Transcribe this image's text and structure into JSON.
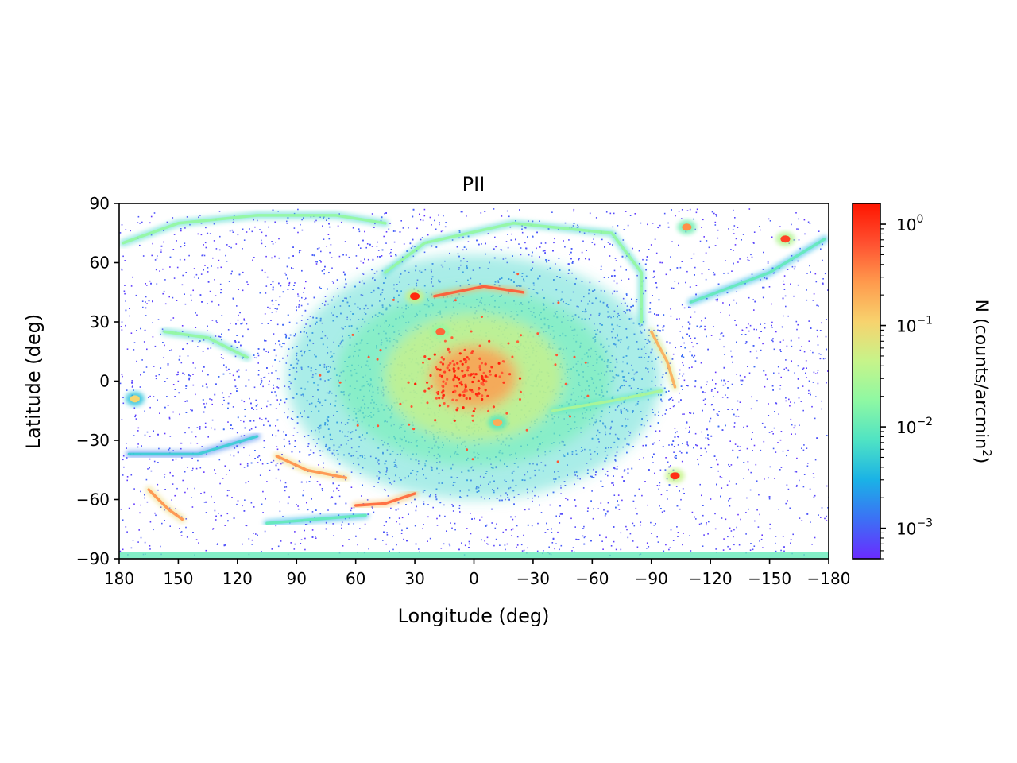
{
  "chart_data": {
    "type": "heatmap",
    "title": "PII",
    "xlabel": "Longitude (deg)",
    "ylabel": "Latitude (deg)",
    "xlim": [
      180,
      -180
    ],
    "ylim": [
      -90,
      90
    ],
    "x_ticks": [
      180,
      150,
      120,
      90,
      60,
      30,
      0,
      -30,
      -60,
      -90,
      -120,
      -150,
      -180
    ],
    "x_tick_labels": [
      "180",
      "150",
      "120",
      "90",
      "60",
      "30",
      "0",
      "−30",
      "−60",
      "−90",
      "−120",
      "−150",
      "−180"
    ],
    "y_ticks": [
      90,
      60,
      30,
      0,
      -30,
      -60,
      -90
    ],
    "y_tick_labels": [
      "90",
      "60",
      "30",
      "0",
      "−30",
      "−60",
      "−90"
    ],
    "colorbar": {
      "label_main": "N (counts/arcmin",
      "label_sup": "2",
      "label_close": ")",
      "scale": "log",
      "range": [
        0.0005,
        1.6
      ],
      "ticks": [
        {
          "value": 1,
          "base": "10",
          "exp": "0"
        },
        {
          "value": 0.1,
          "base": "10",
          "exp": "−1"
        },
        {
          "value": 0.01,
          "base": "10",
          "exp": "−2"
        },
        {
          "value": 0.001,
          "base": "10",
          "exp": "−3"
        }
      ],
      "colormap": "rainbow",
      "colormap_stops": [
        "#6a2bff",
        "#3c70f5",
        "#1ab2e6",
        "#4fe3c4",
        "#8ef8a3",
        "#c6f48a",
        "#f7d36e",
        "#ff9a4d",
        "#ff5030",
        "#ff1500"
      ]
    },
    "features": {
      "central_core": {
        "lon": 5,
        "lat": 0,
        "density": 1.0
      },
      "halo": {
        "lon": 0,
        "lat": 2,
        "density": 0.015
      },
      "dense_clumps": [
        {
          "lon": 30,
          "lat": 43,
          "density": 1.2
        },
        {
          "lon": 17,
          "lat": 25,
          "density": 0.5
        },
        {
          "lon": -102,
          "lat": -48,
          "density": 1.1
        },
        {
          "lon": -158,
          "lat": 72,
          "density": 0.8
        },
        {
          "lon": -108,
          "lat": 78,
          "density": 0.3
        },
        {
          "lon": -12,
          "lat": -21,
          "density": 0.2
        },
        {
          "lon": 172,
          "lat": -9,
          "density": 0.1
        }
      ],
      "streams": [
        {
          "points": [
            [
              178,
              70
            ],
            [
              150,
              80
            ],
            [
              110,
              84
            ],
            [
              70,
              84
            ],
            [
              45,
              80
            ]
          ],
          "density": 0.02
        },
        {
          "points": [
            [
              157,
              25
            ],
            [
              135,
              22
            ],
            [
              115,
              12
            ]
          ],
          "density": 0.02
        },
        {
          "points": [
            [
              175,
              -37
            ],
            [
              140,
              -37
            ],
            [
              110,
              -28
            ]
          ],
          "density": 0.005
        },
        {
          "points": [
            [
              165,
              -55
            ],
            [
              155,
              -65
            ],
            [
              148,
              -70
            ]
          ],
          "density": 0.3
        },
        {
          "points": [
            [
              100,
              -38
            ],
            [
              85,
              -45
            ],
            [
              65,
              -49
            ]
          ],
          "density": 0.3
        },
        {
          "points": [
            [
              60,
              -63
            ],
            [
              45,
              -62
            ],
            [
              30,
              -57
            ]
          ],
          "density": 0.5
        },
        {
          "points": [
            [
              105,
              -72
            ],
            [
              80,
              -70
            ],
            [
              55,
              -68
            ]
          ],
          "density": 0.01
        },
        {
          "points": [
            [
              20,
              43
            ],
            [
              -5,
              48
            ],
            [
              -25,
              45
            ]
          ],
          "density": 0.6
        },
        {
          "points": [
            [
              45,
              55
            ],
            [
              25,
              70
            ],
            [
              -20,
              80
            ],
            [
              -70,
              75
            ],
            [
              -85,
              55
            ],
            [
              -85,
              30
            ]
          ],
          "density": 0.02
        },
        {
          "points": [
            [
              -110,
              40
            ],
            [
              -150,
              55
            ],
            [
              -178,
              72
            ]
          ],
          "density": 0.01
        },
        {
          "points": [
            [
              -90,
              25
            ],
            [
              -98,
              10
            ],
            [
              -102,
              -3
            ]
          ],
          "density": 0.2
        },
        {
          "points": [
            [
              -40,
              -15
            ],
            [
              -70,
              -10
            ],
            [
              -95,
              -5
            ]
          ],
          "density": 0.03
        }
      ]
    }
  }
}
